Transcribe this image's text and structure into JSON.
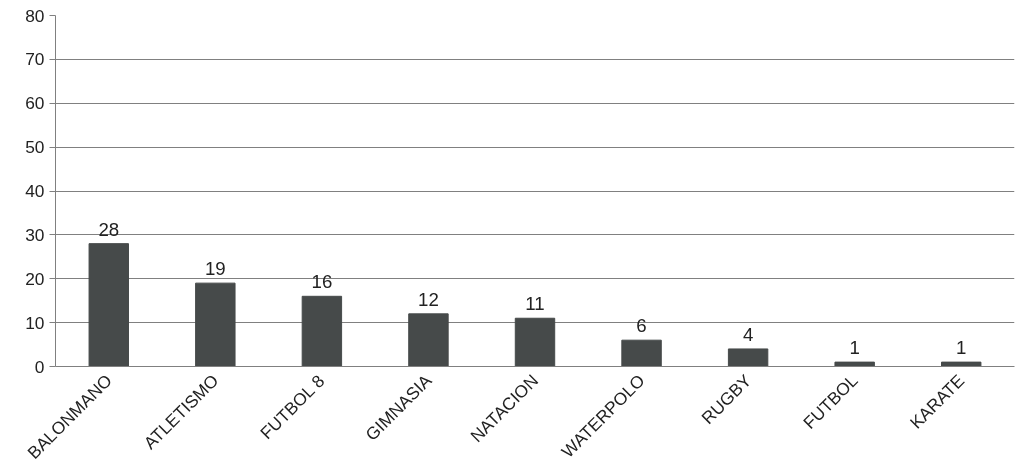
{
  "chart_data": {
    "type": "bar",
    "categories": [
      "BALONMANO",
      "ATLETISMO",
      "FUTBOL 8",
      "GIMNASIA",
      "NATACION",
      "WATERPOLO",
      "RUGBY",
      "FUTBOL",
      "KARATE"
    ],
    "values": [
      28,
      19,
      16,
      12,
      11,
      6,
      4,
      1,
      1
    ],
    "color": "#464a4a",
    "ylim": [
      0,
      80
    ],
    "yticks": [
      0,
      10,
      20,
      30,
      40,
      50,
      60,
      70,
      80
    ],
    "grid": "y",
    "data_labels": true
  }
}
